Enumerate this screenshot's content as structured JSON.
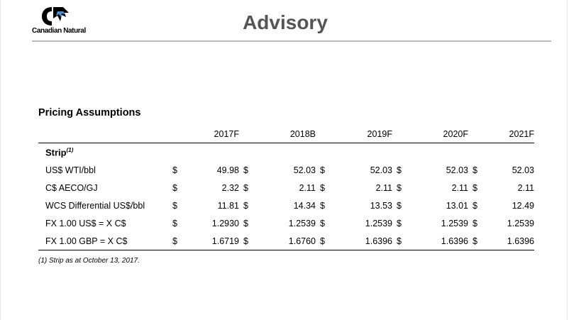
{
  "header": {
    "logo_text": "Canadian Natural",
    "title": "Advisory"
  },
  "section": {
    "title": "Pricing Assumptions"
  },
  "table": {
    "columns": [
      "2017F",
      "2018B",
      "2019F",
      "2020F",
      "2021F"
    ],
    "group_label": "Strip",
    "group_footnote_ref": "(1)",
    "currency_symbol": "$",
    "rows": [
      {
        "label": "US$ WTI/bbl",
        "values": [
          "49.98",
          "52.03",
          "52.03",
          "52.03",
          "52.03"
        ]
      },
      {
        "label": "C$ AECO/GJ",
        "values": [
          "2.32",
          "2.11",
          "2.11",
          "2.11",
          "2.11"
        ]
      },
      {
        "label": "WCS Differential US$/bbl",
        "values": [
          "11.81",
          "14.34",
          "13.53",
          "13.01",
          "12.49"
        ]
      },
      {
        "label": "FX 1.00 US$ = X C$",
        "values": [
          "1.2930",
          "1.2539",
          "1.2539",
          "1.2539",
          "1.2539"
        ]
      },
      {
        "label": "FX 1.00 GBP = X C$",
        "values": [
          "1.6719",
          "1.6760",
          "1.6396",
          "1.6396",
          "1.6396"
        ]
      }
    ]
  },
  "footnote": "(1) Strip as at October 13, 2017."
}
